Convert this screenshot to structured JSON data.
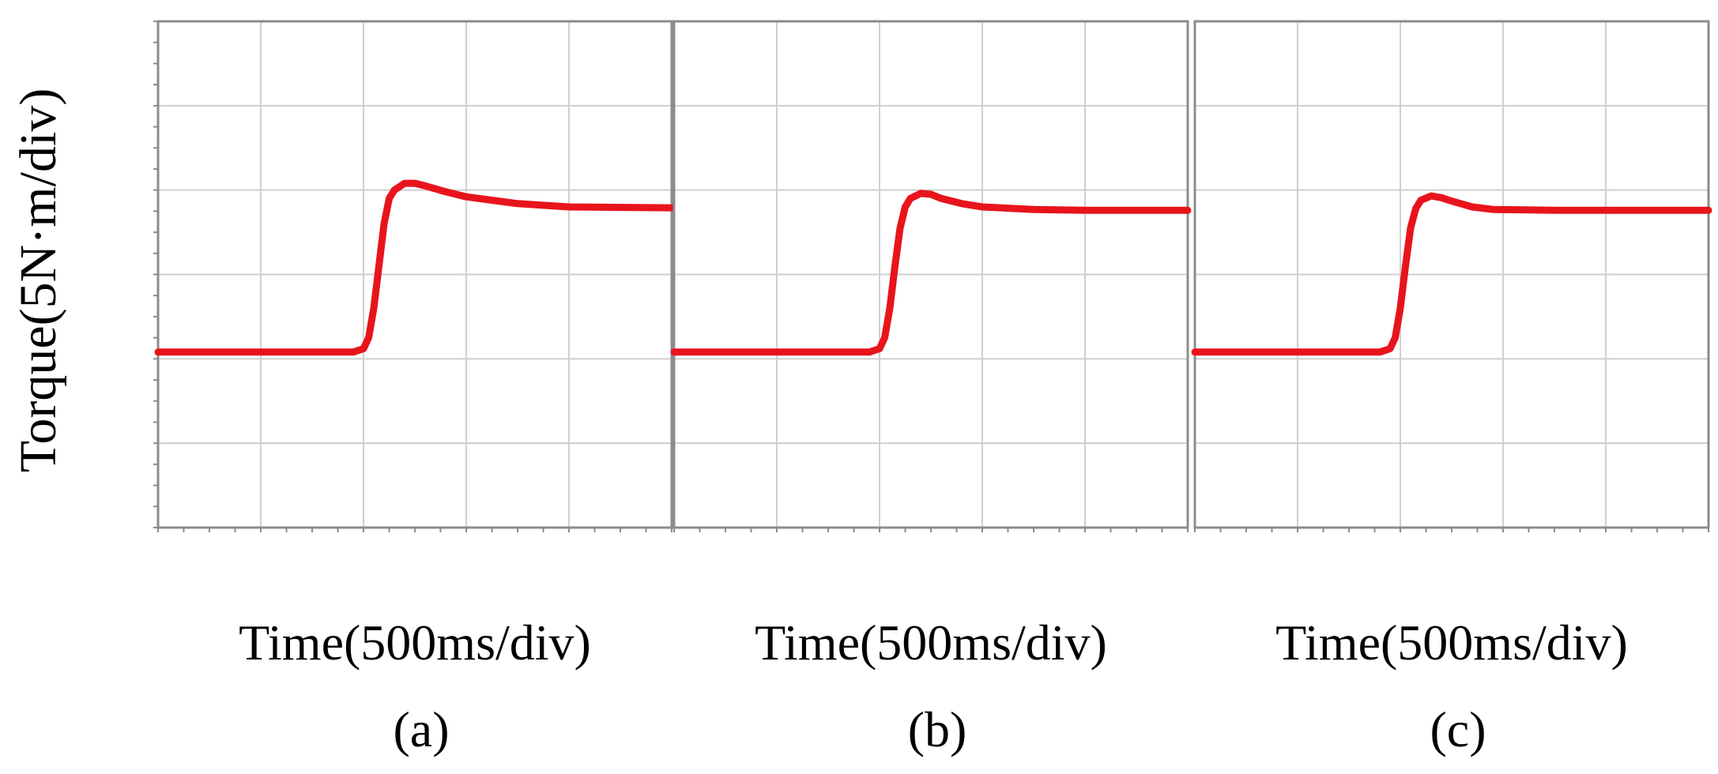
{
  "figure": {
    "ylabel": "Torque(5N·m/div)"
  },
  "colors": {
    "trace": "#e8141c",
    "grid": "#cfcfcf",
    "frame": "#8c8c8c"
  },
  "chart_data": [
    {
      "type": "line",
      "xlabel": "Time(500ms/div)",
      "caption": "(a)",
      "x_divisions": 5,
      "y_divisions": 6,
      "ylabel": "Torque(5N·m/div)",
      "grid": true,
      "series": [
        {
          "x": [
            0.0,
            1.0,
            1.9,
            2.0,
            2.05,
            2.1,
            2.15,
            2.2,
            2.25,
            2.3,
            2.4,
            2.5,
            2.6,
            2.8,
            3.0,
            3.5,
            4.0,
            5.0
          ],
          "y": [
            2.08,
            2.08,
            2.08,
            2.12,
            2.25,
            2.6,
            3.1,
            3.6,
            3.9,
            4.0,
            4.08,
            4.08,
            4.05,
            3.98,
            3.92,
            3.84,
            3.8,
            3.79
          ]
        }
      ]
    },
    {
      "type": "line",
      "xlabel": "Time(500ms/div)",
      "caption": "(b)",
      "x_divisions": 5,
      "y_divisions": 6,
      "grid": true,
      "series": [
        {
          "x": [
            0.0,
            1.0,
            1.9,
            2.0,
            2.05,
            2.1,
            2.15,
            2.2,
            2.25,
            2.3,
            2.4,
            2.5,
            2.6,
            2.8,
            3.0,
            3.5,
            4.0,
            5.0
          ],
          "y": [
            2.08,
            2.08,
            2.08,
            2.12,
            2.25,
            2.6,
            3.1,
            3.55,
            3.8,
            3.9,
            3.96,
            3.95,
            3.9,
            3.84,
            3.8,
            3.77,
            3.76,
            3.76
          ]
        }
      ]
    },
    {
      "type": "line",
      "xlabel": "Time(500ms/div)",
      "caption": "(c)",
      "x_divisions": 5,
      "y_divisions": 6,
      "grid": true,
      "series": [
        {
          "x": [
            0.0,
            1.0,
            1.8,
            1.9,
            1.95,
            2.0,
            2.05,
            2.1,
            2.15,
            2.2,
            2.3,
            2.4,
            2.5,
            2.7,
            2.9,
            3.5,
            4.0,
            5.0
          ],
          "y": [
            2.08,
            2.08,
            2.08,
            2.12,
            2.25,
            2.6,
            3.1,
            3.55,
            3.78,
            3.88,
            3.93,
            3.91,
            3.87,
            3.8,
            3.77,
            3.76,
            3.76,
            3.76
          ]
        }
      ]
    }
  ]
}
